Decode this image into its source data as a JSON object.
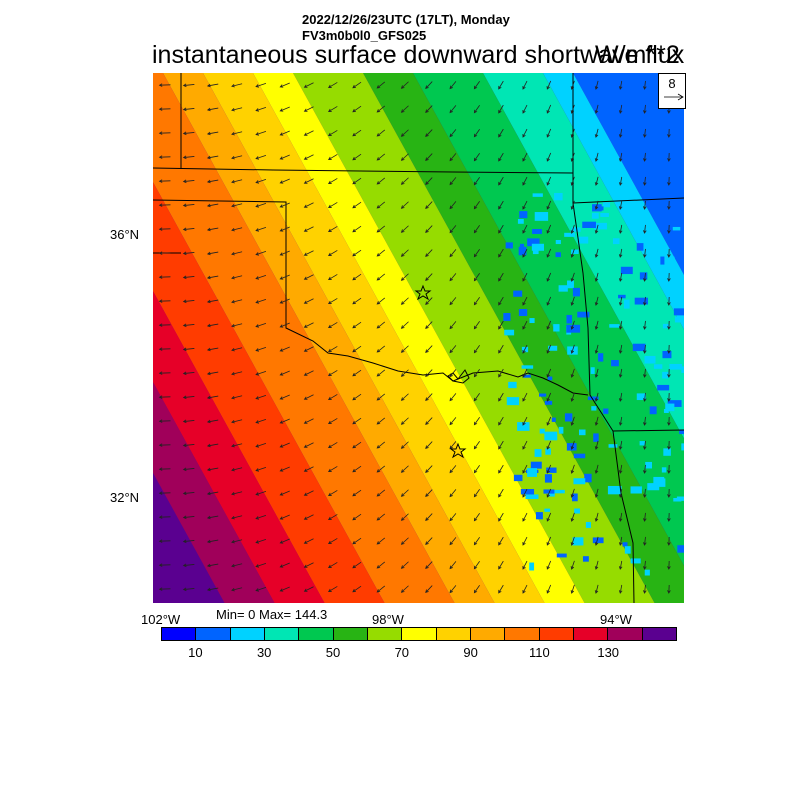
{
  "header": {
    "line1": "2022/12/26/23UTC (17LT), Monday",
    "line2": "FV3m0b0l0_GFS025",
    "title": "instantaneous surface downward shortwave flux",
    "units": "W/m**2"
  },
  "reference_vector": {
    "value": "8"
  },
  "axes": {
    "lat_labels": [
      "36°N",
      "32°N"
    ],
    "lon_labels": [
      "102°W",
      "98°W",
      "94°W"
    ]
  },
  "stats": {
    "text": "Min= 0 Max= 144.3"
  },
  "colorbar": {
    "colors": [
      "#0000ff",
      "#0064ff",
      "#00d2ff",
      "#00e6b4",
      "#00c850",
      "#28b414",
      "#96dc00",
      "#ffff00",
      "#ffd200",
      "#ffaa00",
      "#ff7800",
      "#ff3c00",
      "#e60028",
      "#a0005a",
      "#5a0090"
    ],
    "tick_labels": [
      "10",
      "30",
      "50",
      "70",
      "90",
      "110",
      "130"
    ]
  },
  "icons": {
    "city_markers": "star-icon",
    "reference": "arrow-right-icon"
  }
}
